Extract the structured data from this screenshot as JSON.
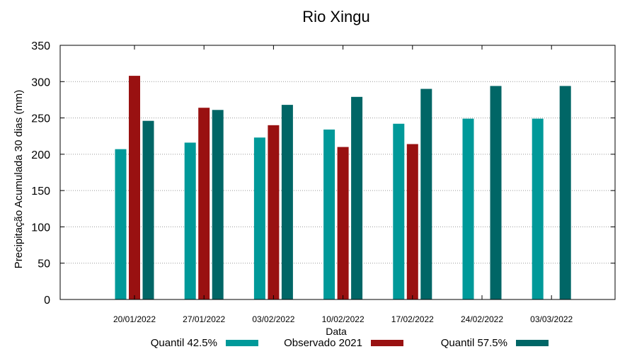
{
  "chart_data": {
    "type": "bar",
    "title": "Rio Xingu",
    "xlabel": "Data",
    "ylabel": "Precipitação Acumulada 30 dias (mm)",
    "ylim": [
      0,
      350
    ],
    "yticks": [
      0,
      50,
      100,
      150,
      200,
      250,
      300,
      350
    ],
    "grid": true,
    "legend_position": "bottom",
    "categories": [
      "20/01/2022",
      "27/01/2022",
      "03/02/2022",
      "10/02/2022",
      "17/02/2022",
      "24/02/2022",
      "03/03/2022"
    ],
    "series": [
      {
        "name": "Quantil 42.5%",
        "color": "#009999",
        "values": [
          207,
          216,
          223,
          234,
          242,
          249,
          249
        ]
      },
      {
        "name": "Observado 2021",
        "color": "#991111",
        "values": [
          308,
          264,
          240,
          210,
          214,
          null,
          null
        ]
      },
      {
        "name": "Quantil 57.5%",
        "color": "#006666",
        "values": [
          246,
          261,
          268,
          279,
          290,
          294,
          294
        ]
      }
    ]
  }
}
